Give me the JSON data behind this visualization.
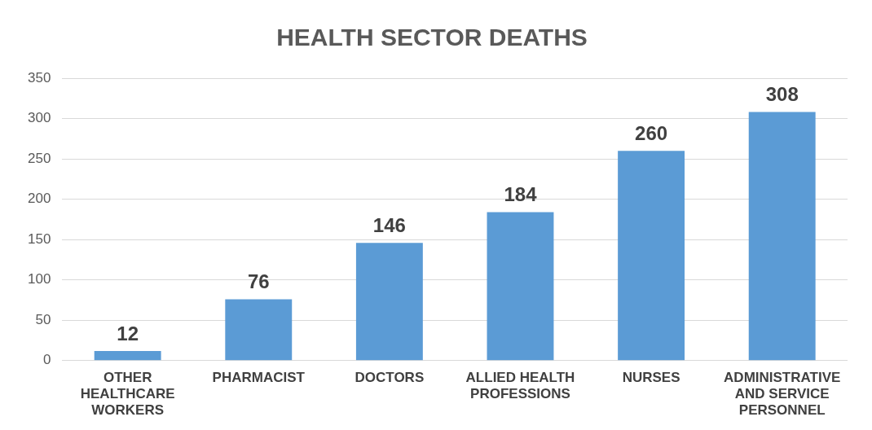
{
  "chart_data": {
    "type": "bar",
    "title": "HEALTH SECTOR DEATHS",
    "categories": [
      "OTHER HEALTHCARE WORKERS",
      "PHARMACIST",
      "DOCTORS",
      "ALLIED HEALTH PROFESSIONS",
      "NURSES",
      "ADMINISTRATIVE AND SERVICE PERSONNEL"
    ],
    "values": [
      12,
      76,
      146,
      184,
      260,
      308
    ],
    "color": "#5b9bd5",
    "ylim": [
      0,
      350
    ],
    "yticks": [
      0,
      50,
      100,
      150,
      200,
      250,
      300,
      350
    ],
    "grid": "y",
    "data_labels": true,
    "legend": false
  }
}
